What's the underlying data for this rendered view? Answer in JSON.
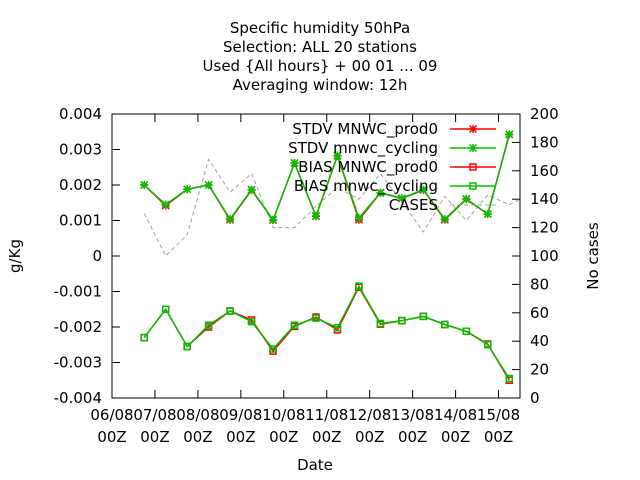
{
  "chart_data": {
    "type": "line",
    "title_lines": [
      "Specific humidity 50hPa",
      "Selection: ALL      20 stations",
      "Used {All hours} + 00 01 ... 09",
      "Averaging window: 12h"
    ],
    "xlabel": "Date",
    "ylabel": "g/Kg",
    "y2label": "No cases",
    "xlim": [
      0,
      9.5
    ],
    "ylim": [
      -0.004,
      0.004
    ],
    "y2lim": [
      0,
      200
    ],
    "x_ticks": [
      {
        "x": 0,
        "line1": "06/08",
        "line2": "00Z"
      },
      {
        "x": 1,
        "line1": "07/08",
        "line2": "00Z"
      },
      {
        "x": 2,
        "line1": "08/08",
        "line2": "00Z"
      },
      {
        "x": 3,
        "line1": "09/08",
        "line2": "00Z"
      },
      {
        "x": 4,
        "line1": "10/08",
        "line2": "00Z"
      },
      {
        "x": 5,
        "line1": "11/08",
        "line2": "00Z"
      },
      {
        "x": 6,
        "line1": "12/08",
        "line2": "00Z"
      },
      {
        "x": 7,
        "line1": "13/08",
        "line2": "00Z"
      },
      {
        "x": 8,
        "line1": "14/08",
        "line2": "00Z"
      },
      {
        "x": 9,
        "line1": "15/08",
        "line2": "00Z"
      }
    ],
    "y_ticks": [
      "0.004",
      "0.003",
      "0.002",
      "0.001",
      "0",
      "-0.001",
      "-0.002",
      "-0.003",
      "-0.004"
    ],
    "y2_ticks": [
      "200",
      "180",
      "160",
      "140",
      "120",
      "100",
      "80",
      "60",
      "40",
      "20",
      "0"
    ],
    "x": [
      0.75,
      1.25,
      1.75,
      2.25,
      2.75,
      3.25,
      3.75,
      4.25,
      4.75,
      5.25,
      5.75,
      6.25,
      6.75,
      7.25,
      7.75,
      8.25,
      8.75,
      9.25,
      9.5
    ],
    "series": [
      {
        "name": "STDV MNWC_prod0",
        "color": "#ff0000",
        "marker": "star",
        "axis": "y1",
        "values": [
          0.002,
          0.00142,
          0.00188,
          0.002,
          0.00102,
          0.00186,
          0.00101,
          0.00262,
          0.00112,
          0.00282,
          0.00102,
          0.00178,
          0.00162,
          0.00186,
          0.00102,
          0.0016,
          0.00118,
          0.00342,
          null
        ]
      },
      {
        "name": "STDV mnwc_cycling",
        "color": "#00c000",
        "marker": "star",
        "axis": "y1",
        "values": [
          0.002,
          0.00145,
          0.00188,
          0.002,
          0.00104,
          0.00187,
          0.00102,
          0.00262,
          0.00113,
          0.00283,
          0.00107,
          0.00178,
          0.00163,
          0.00187,
          0.00104,
          0.00161,
          0.00118,
          0.00343,
          null
        ]
      },
      {
        "name": "BIAS MNWC_prod0",
        "color": "#ff0000",
        "marker": "square",
        "axis": "y1",
        "values": [
          -0.0023,
          -0.0015,
          -0.00255,
          -0.002,
          -0.00155,
          -0.0018,
          -0.00268,
          -0.00198,
          -0.00172,
          -0.00208,
          -0.00088,
          -0.00192,
          -0.00182,
          -0.0017,
          -0.00193,
          -0.00212,
          -0.00248,
          -0.0035,
          null
        ]
      },
      {
        "name": "BIAS mnwc_cycling",
        "color": "#00c000",
        "marker": "square",
        "axis": "y1",
        "values": [
          -0.0023,
          -0.0015,
          -0.00255,
          -0.00195,
          -0.00155,
          -0.00185,
          -0.00262,
          -0.00195,
          -0.00175,
          -0.00202,
          -0.00085,
          -0.0019,
          -0.00182,
          -0.0017,
          -0.00193,
          -0.00212,
          -0.0025,
          -0.00345,
          null
        ]
      },
      {
        "name": "CASES",
        "color": "#a0a0a0",
        "marker": "none",
        "dashed": true,
        "axis": "y2",
        "values": [
          130,
          100,
          115,
          168,
          145,
          158,
          120,
          120,
          135,
          148,
          140,
          158,
          138,
          117,
          142,
          125,
          143,
          136,
          140
        ]
      }
    ]
  }
}
